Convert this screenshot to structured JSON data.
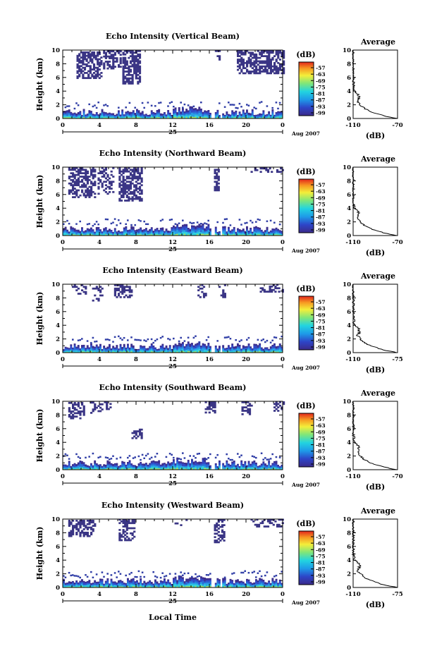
{
  "figure": {
    "x_axis_label": "Local Time",
    "date_label": "Aug 2007",
    "day_label": "25",
    "y_axis_label": "Height (km)",
    "average_title": "Average",
    "unit_label": "(dB)"
  },
  "chart_data": [
    {
      "type": "heatmap",
      "title": "Echo Intensity (Vertical Beam)",
      "xlabel": "Local Time",
      "ylabel": "Height (km)",
      "xlim": [
        0,
        24
      ],
      "ylim": [
        0,
        10
      ],
      "xticks": [
        "0",
        "4",
        "8",
        "12",
        "16",
        "20",
        "0"
      ],
      "yticks": [
        "0",
        "2",
        "4",
        "6",
        "8",
        "10"
      ],
      "day_label": "25",
      "date_label": "Aug 2007",
      "colorbar": {
        "label": "(dB)",
        "ticks": [
          "-57",
          "-63",
          "-69",
          "-75",
          "-81",
          "-87",
          "-93",
          "-99"
        ]
      },
      "average_profile": {
        "title": "Average",
        "xlabel": "(dB)",
        "xlim": [
          -110,
          -70
        ],
        "xticklabels": [
          "-110",
          "-70"
        ],
        "ylim": [
          0,
          10
        ],
        "yticks": [
          "0",
          "2",
          "4",
          "6",
          "8",
          "10"
        ]
      }
    },
    {
      "type": "heatmap",
      "title": "Echo Intensity (Northward Beam)",
      "xlabel": "Local Time",
      "ylabel": "Height (km)",
      "xlim": [
        0,
        24
      ],
      "ylim": [
        0,
        10
      ],
      "xticks": [
        "0",
        "4",
        "8",
        "12",
        "16",
        "20",
        "0"
      ],
      "yticks": [
        "0",
        "2",
        "4",
        "6",
        "8",
        "10"
      ],
      "day_label": "25",
      "date_label": "Aug 2007",
      "colorbar": {
        "label": "(dB)",
        "ticks": [
          "-57",
          "-63",
          "-69",
          "-75",
          "-81",
          "-87",
          "-93",
          "-99"
        ]
      },
      "average_profile": {
        "title": "Average",
        "xlabel": "(dB)",
        "xlim": [
          -110,
          -70
        ],
        "xticklabels": [
          "-110",
          "-70"
        ],
        "ylim": [
          0,
          10
        ],
        "yticks": [
          "0",
          "2",
          "4",
          "6",
          "8",
          "10"
        ]
      }
    },
    {
      "type": "heatmap",
      "title": "Echo Intensity (Eastward Beam)",
      "xlabel": "Local Time",
      "ylabel": "Height (km)",
      "xlim": [
        0,
        24
      ],
      "ylim": [
        0,
        10
      ],
      "xticks": [
        "0",
        "4",
        "8",
        "12",
        "16",
        "20",
        "0"
      ],
      "yticks": [
        "0",
        "2",
        "4",
        "6",
        "8",
        "10"
      ],
      "day_label": "25",
      "date_label": "Aug 2007",
      "colorbar": {
        "label": "(dB)",
        "ticks": [
          "-57",
          "-63",
          "-69",
          "-75",
          "-81",
          "-87",
          "-93",
          "-99"
        ]
      },
      "average_profile": {
        "title": "Average",
        "xlabel": "(dB)",
        "xlim": [
          -110,
          -75
        ],
        "xticklabels": [
          "-110",
          "-75"
        ],
        "ylim": [
          0,
          10
        ],
        "yticks": [
          "0",
          "2",
          "4",
          "6",
          "8",
          "10"
        ]
      }
    },
    {
      "type": "heatmap",
      "title": "Echo Intensity (Southward Beam)",
      "xlabel": "Local Time",
      "ylabel": "Height (km)",
      "xlim": [
        0,
        24
      ],
      "ylim": [
        0,
        10
      ],
      "xticks": [
        "0",
        "4",
        "8",
        "12",
        "16",
        "20",
        "0"
      ],
      "yticks": [
        "0",
        "2",
        "4",
        "6",
        "8",
        "10"
      ],
      "day_label": "25",
      "date_label": "Aug 2007",
      "colorbar": {
        "label": "(dB)",
        "ticks": [
          "-57",
          "-63",
          "-69",
          "-75",
          "-81",
          "-87",
          "-93",
          "-99"
        ]
      },
      "average_profile": {
        "title": "Average",
        "xlabel": "(dB)",
        "xlim": [
          -110,
          -70
        ],
        "xticklabels": [
          "-110",
          "-70"
        ],
        "ylim": [
          0,
          10
        ],
        "yticks": [
          "0",
          "2",
          "4",
          "6",
          "8",
          "10"
        ]
      }
    },
    {
      "type": "heatmap",
      "title": "Echo Intensity (Westward Beam)",
      "xlabel": "Local Time",
      "ylabel": "Height (km)",
      "xlim": [
        0,
        24
      ],
      "ylim": [
        0,
        10
      ],
      "xticks": [
        "0",
        "4",
        "8",
        "12",
        "16",
        "20",
        "0"
      ],
      "yticks": [
        "0",
        "2",
        "4",
        "6",
        "8",
        "10"
      ],
      "day_label": "25",
      "date_label": "Aug 2007",
      "colorbar": {
        "label": "(dB)",
        "ticks": [
          "-57",
          "-63",
          "-69",
          "-75",
          "-81",
          "-87",
          "-93",
          "-99"
        ]
      },
      "average_profile": {
        "title": "Average",
        "xlabel": "(dB)",
        "xlim": [
          -110,
          -75
        ],
        "xticklabels": [
          "-110",
          "-75"
        ],
        "ylim": [
          0,
          10
        ],
        "yticks": [
          "0",
          "2",
          "4",
          "6",
          "8",
          "10"
        ]
      }
    }
  ]
}
